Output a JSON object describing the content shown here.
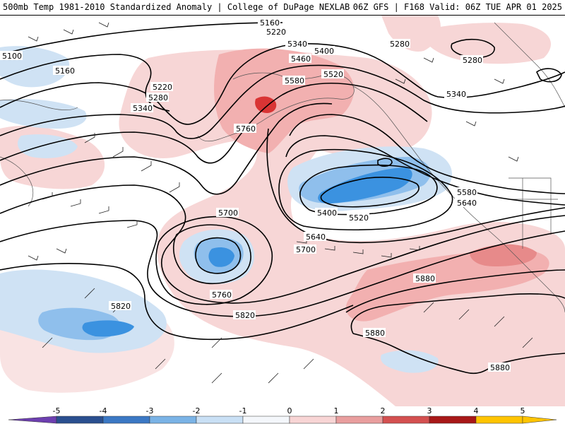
{
  "header": {
    "left_title": "500mb Temp 1981-2010 Standardized Anomaly | College of DuPage NEXLAB",
    "right_title": "06Z GFS | F168 Valid: 06Z TUE APR 01 2025"
  },
  "map": {
    "contour_units": "geopotential height (dam x10)",
    "contour_labels": [
      "5100",
      "5160",
      "5160",
      "5220",
      "5220",
      "5280",
      "5280",
      "5280",
      "5340",
      "5340",
      "5340",
      "5400",
      "5400",
      "5460",
      "5520",
      "5520",
      "5580",
      "5580",
      "5640",
      "5640",
      "5700",
      "5700",
      "5760",
      "5760",
      "5820",
      "5820",
      "5880",
      "5880",
      "5880"
    ],
    "anomaly_colors": {
      "strong_warm": "#cc1a1a",
      "warm": "#f08c8c",
      "weak_warm": "#f7d2d2",
      "weak_cold": "#c6dcf2",
      "cold": "#7fb6ea",
      "strong_cold": "#2f8fe0"
    }
  },
  "colorbar": {
    "ticks": [
      "-5",
      "-4",
      "-3",
      "-2",
      "-1",
      "0",
      "1",
      "2",
      "3",
      "4",
      "5"
    ],
    "colors": [
      "#6d3fb0",
      "#2a4f8f",
      "#3b78c4",
      "#7ab3e6",
      "#c9e0f5",
      "#f4f7fb",
      "#f8d5d5",
      "#e99e9e",
      "#d45050",
      "#a81818",
      "#ffc400"
    ]
  }
}
